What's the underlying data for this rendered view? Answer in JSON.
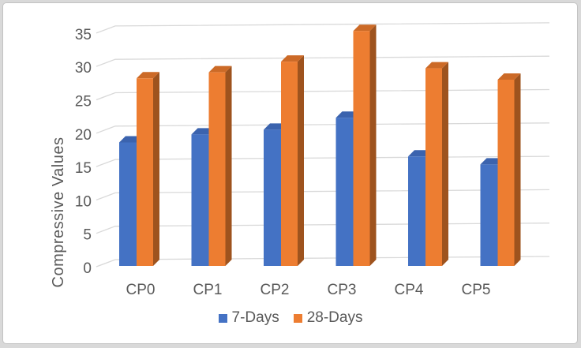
{
  "chart_data": {
    "type": "bar",
    "variant": "3d-clustered-column",
    "title": "",
    "xlabel": "",
    "ylabel": "Compressive Values",
    "categories": [
      "CP0",
      "CP1",
      "CP2",
      "CP3",
      "CP4",
      "CP5"
    ],
    "series": [
      {
        "name": "7-Days",
        "values": [
          18.5,
          19.7,
          20.4,
          22.2,
          16.4,
          15.2
        ],
        "color": "#4472C4",
        "color_top": "#3B63AE",
        "color_side": "#2D4C86"
      },
      {
        "name": "28-Days",
        "values": [
          28.1,
          29.0,
          30.6,
          35.2,
          29.6,
          27.9
        ],
        "color": "#ED7D31",
        "color_top": "#CC6A27",
        "color_side": "#9E531E"
      }
    ],
    "ylim": [
      0,
      35
    ],
    "ytick_step": 5,
    "yticks": [
      0,
      5,
      10,
      15,
      20,
      25,
      30,
      35
    ],
    "grid": true,
    "legend_position": "bottom"
  },
  "style": {
    "gridline_color": "#d9d9d9",
    "tick_label_color": "#595959",
    "axis_title_color": "#595959",
    "card_border_color": "#c3c3c3",
    "page_background": "#d9d9d9",
    "plot_background": "#ffffff"
  }
}
